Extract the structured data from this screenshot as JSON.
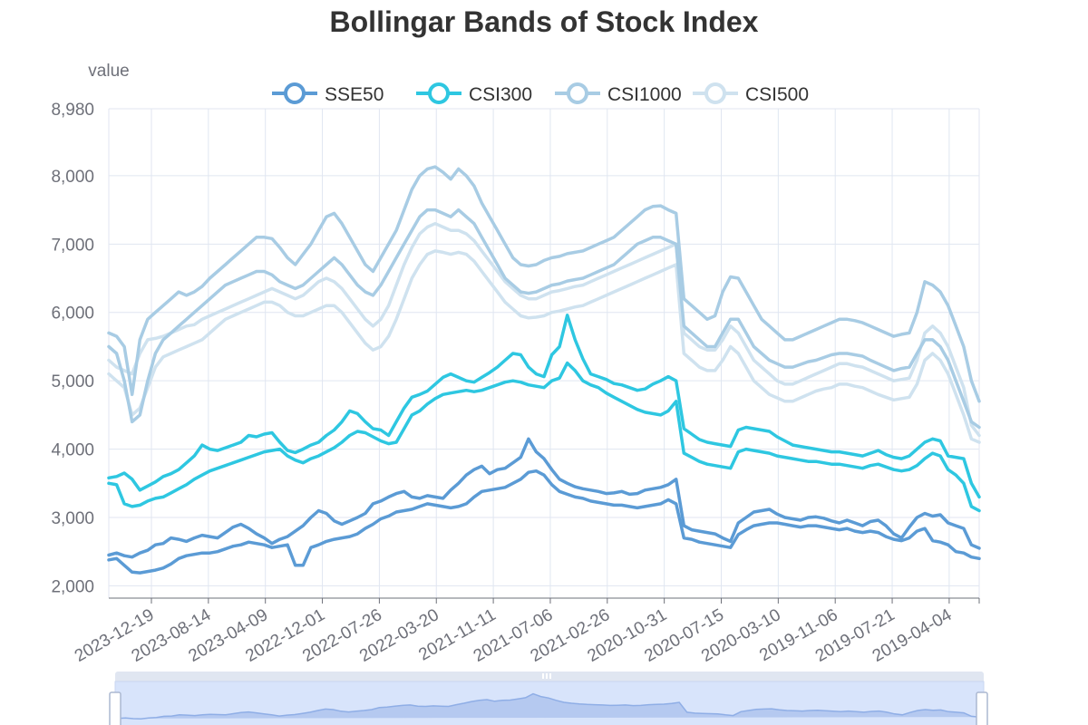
{
  "chart_data": {
    "type": "line",
    "title": "Bollingar Bands of Stock Index",
    "ylabel": "value",
    "xlabel": "",
    "ylim": [
      1820,
      8980
    ],
    "yticks": [
      8980,
      8000,
      7000,
      6000,
      5000,
      4000,
      3000,
      2000
    ],
    "ytick_labels": [
      "8,980",
      "8,000",
      "7,000",
      "6,000",
      "5,000",
      "4,000",
      "3,000",
      "2,000"
    ],
    "x_tick_labels": [
      "2023-12-19",
      "2023-08-14",
      "2023-04-09",
      "2022-12-01",
      "2022-07-26",
      "2022-03-20",
      "2021-11-11",
      "2021-07-06",
      "2021-02-26",
      "2020-10-31",
      "2020-07-15",
      "2020-03-10",
      "2019-11-06",
      "2019-07-21",
      "2019-04-04"
    ],
    "legend_position": "top",
    "grid": true,
    "series": [
      {
        "name": "SSE50",
        "color": "#5B9BD5",
        "upper": [
          2450,
          2480,
          2440,
          2420,
          2480,
          2520,
          2600,
          2620,
          2700,
          2680,
          2650,
          2700,
          2740,
          2720,
          2700,
          2780,
          2860,
          2900,
          2840,
          2760,
          2700,
          2620,
          2680,
          2720,
          2800,
          2880,
          3000,
          3100,
          3060,
          2950,
          2900,
          2950,
          3000,
          3060,
          3200,
          3240,
          3300,
          3350,
          3380,
          3300,
          3280,
          3320,
          3300,
          3280,
          3400,
          3500,
          3620,
          3700,
          3750,
          3640,
          3700,
          3720,
          3800,
          3880,
          4150,
          3960,
          3860,
          3700,
          3560,
          3500,
          3450,
          3420,
          3400,
          3380,
          3350,
          3360,
          3380,
          3340,
          3350,
          3400,
          3420,
          3440,
          3480,
          3560,
          2880,
          2820,
          2800,
          2780,
          2760,
          2700,
          2650,
          2920,
          3000,
          3080,
          3100,
          3120,
          3050,
          3000,
          2980,
          2960,
          3000,
          3010,
          2990,
          2950,
          2920,
          2960,
          2920,
          2880,
          2940,
          2960,
          2880,
          2760,
          2700,
          2860,
          3000,
          3060,
          3020,
          3040,
          2920,
          2880,
          2840,
          2600,
          2550
        ],
        "lower": [
          2380,
          2400,
          2300,
          2200,
          2190,
          2210,
          2230,
          2260,
          2320,
          2400,
          2440,
          2460,
          2480,
          2480,
          2500,
          2540,
          2580,
          2600,
          2640,
          2620,
          2600,
          2560,
          2580,
          2600,
          2300,
          2300,
          2560,
          2600,
          2650,
          2680,
          2700,
          2720,
          2760,
          2840,
          2900,
          2980,
          3020,
          3080,
          3100,
          3120,
          3160,
          3200,
          3180,
          3160,
          3140,
          3160,
          3200,
          3300,
          3380,
          3400,
          3420,
          3440,
          3500,
          3560,
          3660,
          3680,
          3620,
          3480,
          3380,
          3340,
          3300,
          3280,
          3240,
          3220,
          3200,
          3180,
          3180,
          3160,
          3140,
          3160,
          3180,
          3200,
          3260,
          3200,
          2700,
          2680,
          2640,
          2620,
          2600,
          2580,
          2560,
          2750,
          2820,
          2880,
          2900,
          2920,
          2920,
          2900,
          2880,
          2860,
          2880,
          2880,
          2860,
          2840,
          2820,
          2840,
          2800,
          2780,
          2800,
          2780,
          2720,
          2680,
          2660,
          2700,
          2800,
          2840,
          2660,
          2640,
          2600,
          2500,
          2480,
          2420,
          2400
        ]
      },
      {
        "name": "CSI300",
        "color": "#2EC7E1",
        "upper": [
          3580,
          3600,
          3650,
          3560,
          3400,
          3460,
          3520,
          3600,
          3640,
          3700,
          3800,
          3900,
          4060,
          4000,
          3980,
          4020,
          4060,
          4100,
          4200,
          4180,
          4220,
          4240,
          4100,
          3980,
          3950,
          4000,
          4060,
          4100,
          4200,
          4280,
          4400,
          4560,
          4520,
          4400,
          4300,
          4280,
          4200,
          4400,
          4600,
          4760,
          4800,
          4850,
          4950,
          5050,
          5100,
          5050,
          5000,
          4980,
          5050,
          5120,
          5200,
          5300,
          5400,
          5380,
          5200,
          5100,
          5060,
          5380,
          5500,
          5960,
          5600,
          5320,
          5100,
          5060,
          5020,
          4960,
          4940,
          4900,
          4860,
          4880,
          4950,
          5000,
          5060,
          5000,
          4300,
          4220,
          4140,
          4100,
          4080,
          4060,
          4040,
          4280,
          4320,
          4300,
          4280,
          4260,
          4180,
          4120,
          4060,
          4040,
          4020,
          4000,
          3980,
          3960,
          3960,
          3940,
          3920,
          3900,
          3940,
          3980,
          3920,
          3880,
          3860,
          3900,
          4000,
          4100,
          4150,
          4120,
          3900,
          3880,
          3860,
          3500,
          3300
        ],
        "lower": [
          3500,
          3480,
          3200,
          3160,
          3180,
          3240,
          3280,
          3300,
          3360,
          3420,
          3480,
          3560,
          3620,
          3680,
          3720,
          3760,
          3800,
          3840,
          3880,
          3920,
          3960,
          3980,
          4000,
          3900,
          3840,
          3800,
          3860,
          3900,
          3960,
          4020,
          4100,
          4200,
          4260,
          4240,
          4180,
          4120,
          4080,
          4100,
          4300,
          4500,
          4560,
          4660,
          4740,
          4800,
          4820,
          4840,
          4860,
          4840,
          4860,
          4900,
          4940,
          4980,
          5000,
          4980,
          4940,
          4920,
          4900,
          5000,
          5040,
          5260,
          5150,
          5000,
          4940,
          4900,
          4820,
          4760,
          4700,
          4640,
          4580,
          4540,
          4520,
          4500,
          4560,
          4700,
          3940,
          3880,
          3820,
          3780,
          3760,
          3740,
          3720,
          3960,
          4000,
          3980,
          3960,
          3940,
          3900,
          3880,
          3860,
          3840,
          3820,
          3820,
          3800,
          3780,
          3780,
          3760,
          3740,
          3720,
          3760,
          3780,
          3740,
          3700,
          3680,
          3700,
          3760,
          3860,
          3940,
          3900,
          3700,
          3620,
          3500,
          3160,
          3100
        ]
      },
      {
        "name": "CSI1000",
        "color": "#A8CCE4",
        "upper": [
          5700,
          5650,
          5500,
          4800,
          5600,
          5900,
          6000,
          6100,
          6200,
          6300,
          6250,
          6300,
          6380,
          6500,
          6600,
          6700,
          6800,
          6900,
          7000,
          7100,
          7100,
          7080,
          6950,
          6800,
          6700,
          6850,
          7000,
          7200,
          7400,
          7450,
          7300,
          7100,
          6900,
          6700,
          6600,
          6800,
          7000,
          7200,
          7500,
          7800,
          8000,
          8100,
          8130,
          8050,
          7950,
          8100,
          8000,
          7850,
          7600,
          7400,
          7200,
          7000,
          6800,
          6700,
          6680,
          6700,
          6760,
          6800,
          6820,
          6860,
          6880,
          6900,
          6950,
          7000,
          7050,
          7100,
          7200,
          7300,
          7400,
          7500,
          7550,
          7560,
          7500,
          7450,
          6200,
          6100,
          6000,
          5900,
          5950,
          6300,
          6520,
          6500,
          6300,
          6100,
          5900,
          5800,
          5700,
          5600,
          5600,
          5650,
          5700,
          5750,
          5800,
          5850,
          5900,
          5900,
          5880,
          5850,
          5800,
          5750,
          5700,
          5650,
          5680,
          5700,
          6000,
          6450,
          6400,
          6300,
          6100,
          5800,
          5500,
          5000,
          4700
        ],
        "lower": [
          5500,
          5400,
          5000,
          4400,
          4500,
          5000,
          5400,
          5600,
          5700,
          5800,
          5900,
          6000,
          6100,
          6200,
          6300,
          6400,
          6450,
          6500,
          6550,
          6600,
          6600,
          6550,
          6450,
          6400,
          6350,
          6400,
          6500,
          6600,
          6700,
          6800,
          6700,
          6550,
          6400,
          6300,
          6250,
          6400,
          6600,
          6800,
          7000,
          7200,
          7400,
          7500,
          7500,
          7450,
          7400,
          7500,
          7400,
          7300,
          7100,
          6900,
          6700,
          6500,
          6400,
          6300,
          6280,
          6300,
          6350,
          6400,
          6420,
          6460,
          6480,
          6500,
          6550,
          6600,
          6650,
          6700,
          6800,
          6900,
          7000,
          7050,
          7100,
          7100,
          7050,
          7000,
          5800,
          5700,
          5600,
          5500,
          5500,
          5700,
          5900,
          5900,
          5700,
          5500,
          5400,
          5300,
          5250,
          5200,
          5200,
          5240,
          5280,
          5300,
          5340,
          5380,
          5400,
          5400,
          5380,
          5360,
          5300,
          5250,
          5200,
          5150,
          5180,
          5200,
          5400,
          5600,
          5600,
          5500,
          5300,
          5000,
          4700,
          4400,
          4320
        ]
      },
      {
        "name": "CSI500",
        "color": "#CFE2EF",
        "upper": [
          5300,
          5200,
          5150,
          5100,
          5400,
          5600,
          5620,
          5650,
          5700,
          5750,
          5800,
          5820,
          5900,
          5950,
          6000,
          6050,
          6100,
          6150,
          6200,
          6250,
          6300,
          6350,
          6300,
          6250,
          6200,
          6250,
          6350,
          6450,
          6500,
          6450,
          6350,
          6200,
          6050,
          5900,
          5800,
          5900,
          6100,
          6400,
          6700,
          6950,
          7150,
          7250,
          7300,
          7250,
          7200,
          7200,
          7150,
          7050,
          6900,
          6750,
          6600,
          6450,
          6350,
          6250,
          6200,
          6200,
          6250,
          6300,
          6320,
          6350,
          6380,
          6400,
          6450,
          6500,
          6550,
          6600,
          6650,
          6700,
          6750,
          6800,
          6850,
          6900,
          6950,
          7000,
          5700,
          5600,
          5500,
          5450,
          5450,
          5600,
          5800,
          5700,
          5500,
          5300,
          5200,
          5100,
          5000,
          4950,
          4950,
          5000,
          5050,
          5100,
          5150,
          5200,
          5250,
          5250,
          5220,
          5200,
          5150,
          5100,
          5050,
          5000,
          5020,
          5040,
          5300,
          5700,
          5800,
          5700,
          5500,
          5200,
          4900,
          4350,
          4200
        ],
        "lower": [
          5100,
          5000,
          4900,
          4500,
          4600,
          4900,
          5200,
          5350,
          5400,
          5450,
          5500,
          5550,
          5600,
          5700,
          5800,
          5900,
          5950,
          6000,
          6050,
          6100,
          6150,
          6150,
          6100,
          6000,
          5950,
          5950,
          6000,
          6050,
          6100,
          6100,
          6000,
          5850,
          5700,
          5550,
          5450,
          5500,
          5650,
          5900,
          6200,
          6500,
          6700,
          6850,
          6900,
          6880,
          6850,
          6880,
          6850,
          6750,
          6600,
          6450,
          6300,
          6150,
          6050,
          5950,
          5920,
          5930,
          5950,
          6000,
          6020,
          6050,
          6080,
          6100,
          6150,
          6200,
          6250,
          6300,
          6350,
          6400,
          6450,
          6500,
          6550,
          6600,
          6650,
          6700,
          5400,
          5300,
          5200,
          5150,
          5150,
          5300,
          5500,
          5400,
          5200,
          5000,
          4900,
          4800,
          4750,
          4700,
          4700,
          4750,
          4800,
          4850,
          4880,
          4900,
          4950,
          4950,
          4920,
          4900,
          4850,
          4800,
          4760,
          4720,
          4740,
          4760,
          4950,
          5300,
          5400,
          5300,
          5100,
          4800,
          4500,
          4150,
          4100
        ]
      }
    ]
  }
}
